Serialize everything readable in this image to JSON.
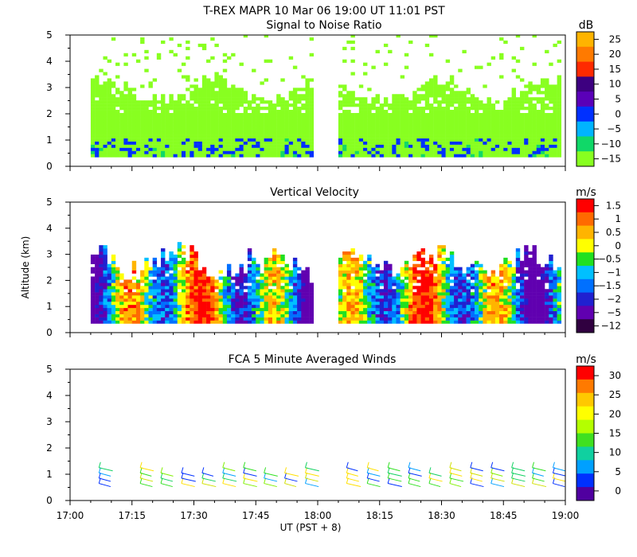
{
  "header": {
    "title": "T-REX   MAPR 10 Mar 06   19:00 UT   11:01   PST"
  },
  "chart_data": [
    {
      "id": "snr",
      "type": "heatmap",
      "title": "Signal to Noise Ratio",
      "ylabel": "",
      "ylim": [
        0,
        5
      ],
      "y_ticks": [
        "0",
        "1",
        "2",
        "3",
        "4",
        "5"
      ],
      "colorbar": {
        "unit": "dB",
        "labels": [
          "25",
          "20",
          "15",
          "10",
          "5",
          "0",
          "−5",
          "−10",
          "−15"
        ],
        "colors": [
          "#ffb400",
          "#ff7a00",
          "#ff2a00",
          "#3d0080",
          "#5a00b8",
          "#0030ff",
          "#00b4ff",
          "#10d868",
          "#88ff20"
        ]
      }
    },
    {
      "id": "velocity",
      "type": "heatmap",
      "title": "Vertical Velocity",
      "ylabel": "Altitude (km)",
      "ylim": [
        0,
        5
      ],
      "y_ticks": [
        "0",
        "1",
        "2",
        "3",
        "4",
        "5"
      ],
      "colorbar": {
        "unit": "m/s",
        "labels": [
          "1.5",
          "1",
          "0.5",
          "0",
          "−0.5",
          "−1",
          "−1.5",
          "−2",
          "−5",
          "−12"
        ],
        "colors": [
          "#ff0000",
          "#ff6a00",
          "#ffb400",
          "#ffff00",
          "#20e020",
          "#00c0ff",
          "#0070ff",
          "#2020d0",
          "#6000b0",
          "#300040"
        ]
      }
    },
    {
      "id": "winds",
      "type": "scatter",
      "title": "FCA 5 Minute Averaged Winds",
      "ylabel": "",
      "ylim": [
        0,
        5
      ],
      "y_ticks": [
        "0",
        "1",
        "2",
        "3",
        "4",
        "5"
      ],
      "x_ticks": [
        "17:00",
        "17:15",
        "17:30",
        "17:45",
        "18:00",
        "18:15",
        "18:30",
        "18:45",
        "19:00"
      ],
      "xlabel": "UT  (PST + 8)",
      "colorbar": {
        "unit": "m/s",
        "labels": [
          "30",
          "25",
          "20",
          "15",
          "10",
          "5",
          "0"
        ],
        "colors": [
          "#ff0000",
          "#ff7a00",
          "#ffc800",
          "#ffff00",
          "#b4ff00",
          "#40e020",
          "#10d0a0",
          "#00a0ff",
          "#0030ff",
          "#5000a0"
        ]
      },
      "barb_times_min": [
        7,
        17,
        22,
        27,
        32,
        37,
        42,
        47,
        52,
        57,
        67,
        72,
        77,
        82,
        87,
        92,
        97,
        102,
        107,
        112,
        117
      ]
    }
  ]
}
